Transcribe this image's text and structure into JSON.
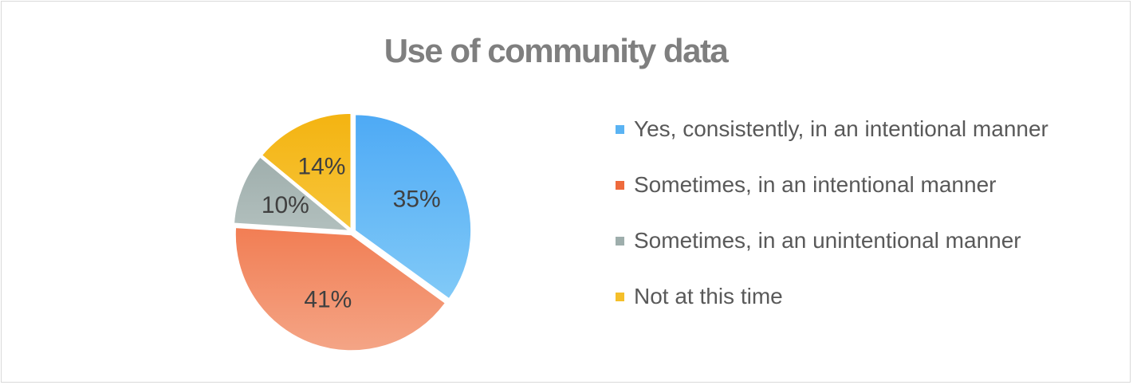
{
  "chart_data": {
    "type": "pie",
    "title": "Use of community data",
    "categories": [
      "Yes, consistently, in an intentional manner",
      "Sometimes, in an intentional manner",
      "Sometimes, in an unintentional manner",
      "Not at this time"
    ],
    "values": [
      35,
      41,
      10,
      14
    ],
    "labels": [
      "35%",
      "41%",
      "10%",
      "14%"
    ],
    "start_angle_deg": 0,
    "direction": "clockwise",
    "legend_position": "right",
    "colors": [
      {
        "top": "#4eaaf5",
        "bottom": "#8fd2f8",
        "swatch": "#5ab3f3"
      },
      {
        "top": "#ef5a26",
        "bottom": "#f4a485",
        "swatch": "#ee6a3c"
      },
      {
        "top": "#95a5a3",
        "bottom": "#cfdad8",
        "swatch": "#9eaeac"
      },
      {
        "top": "#f4b412",
        "bottom": "#f9d664",
        "swatch": "#f5bf2a"
      }
    ]
  }
}
